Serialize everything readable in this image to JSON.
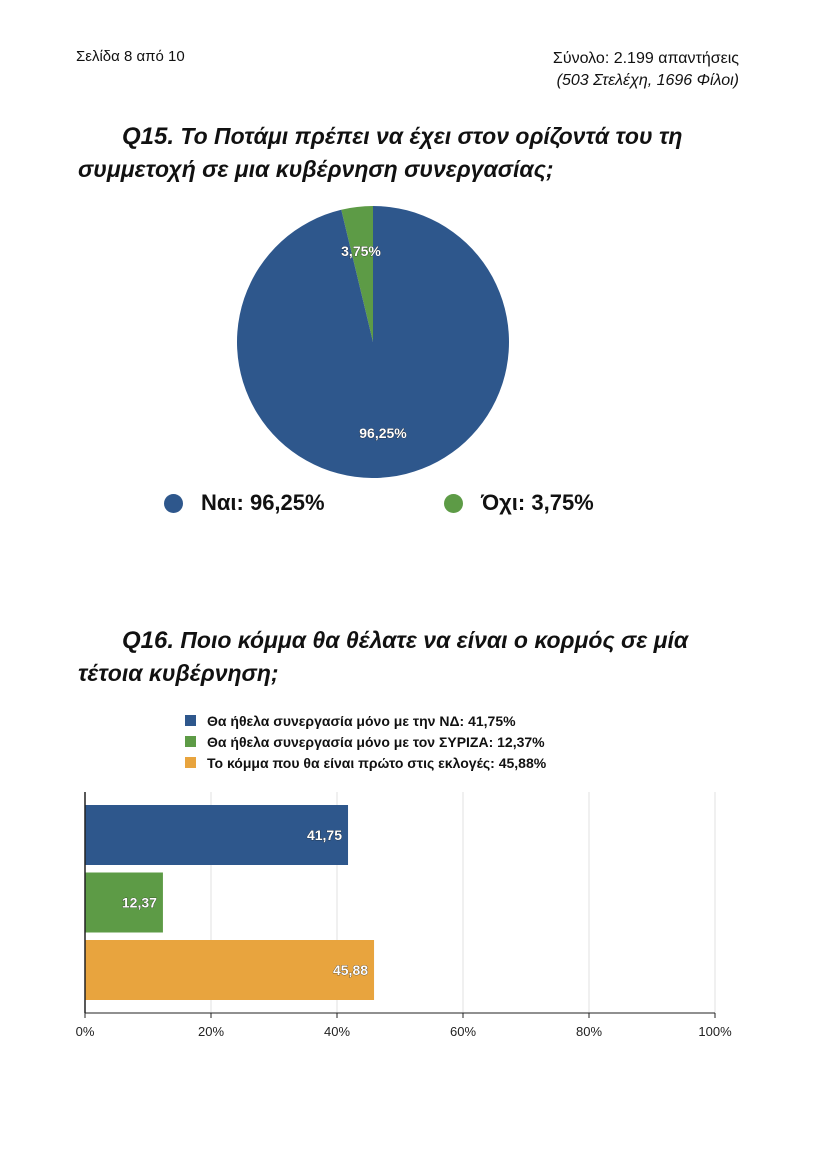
{
  "header": {
    "page_label": "Σελίδα 8 από 10",
    "total_label": "Σύνολο: 2.199 απαντήσεις",
    "breakdown_label": "(503 Στελέχη, 1696 Φίλοι)"
  },
  "q15": {
    "number": "Q15.",
    "text": "Το Ποτάμι πρέπει να έχει στον ορίζοντά του τη συμμετοχή σε μια κυβέρνηση συνεργασίας;",
    "legend": [
      {
        "label": "Ναι: 96,25%",
        "color": "#2e578c"
      },
      {
        "label": "Όχι: 3,75%",
        "color": "#5d9b46"
      }
    ]
  },
  "q16": {
    "number": "Q16.",
    "text": "Ποιο κόμμα θα θέλατε να είναι ο κορμός σε μία τέτοια κυβέρνηση;",
    "legend": [
      {
        "label": "Θα ήθελα συνεργασία μόνο με την ΝΔ: 41,75%",
        "color": "#2e578c"
      },
      {
        "label": "Θα ήθελα συνεργασία μόνο με τον ΣΥΡΙΖΑ: 12,37%",
        "color": "#5d9b46"
      },
      {
        "label": "Το κόμμα που θα είναι πρώτο στις εκλογές: 45,88%",
        "color": "#e8a43e"
      }
    ]
  },
  "chart_data": [
    {
      "type": "pie",
      "title": "Το Ποτάμι πρέπει να έχει στον ορίζοντά του τη συμμετοχή σε μια κυβέρνηση συνεργασίας;",
      "series": [
        {
          "name": "Ναι",
          "value": 96.25,
          "label": "96,25%",
          "color": "#2e578c"
        },
        {
          "name": "Όχι",
          "value": 3.75,
          "label": "3,75%",
          "color": "#5d9b46"
        }
      ],
      "legend": "bottom"
    },
    {
      "type": "bar",
      "orientation": "horizontal",
      "title": "Ποιο κόμμα θα θέλατε να είναι ο κορμός σε μία τέτοια κυβέρνηση;",
      "categories": [
        "Θα ήθελα συνεργασία μόνο με την ΝΔ",
        "Θα ήθελα συνεργασία μόνο με τον ΣΥΡΙΖΑ",
        "Το κόμμα που θα είναι πρώτο στις εκλογές"
      ],
      "values": [
        41.75,
        12.37,
        45.88
      ],
      "data_labels": [
        "41,75",
        "12,37",
        "45,88"
      ],
      "colors": [
        "#2e578c",
        "#5d9b46",
        "#e8a43e"
      ],
      "xlim": [
        0,
        100
      ],
      "x_ticks": [
        0,
        20,
        40,
        60,
        80,
        100
      ],
      "x_tick_labels": [
        "0%",
        "20%",
        "40%",
        "60%",
        "80%",
        "100%"
      ],
      "grid": true,
      "legend": "top"
    }
  ]
}
